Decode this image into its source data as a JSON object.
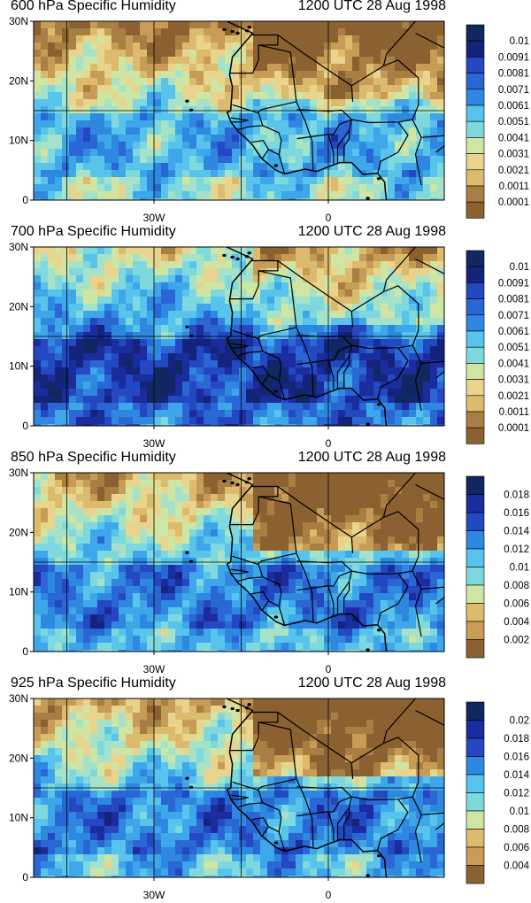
{
  "colors": {
    "ramp": [
      "#8c6131",
      "#a87e42",
      "#c79c56",
      "#ddbb6c",
      "#e8d48c",
      "#cfe5a4",
      "#a6e2c8",
      "#7ed9de",
      "#58c4ec",
      "#3ea7ea",
      "#2f88e0",
      "#2a67d4",
      "#2447c2",
      "#1a2c9e",
      "#14247a",
      "#102760"
    ],
    "coast": "#000000",
    "grid": "#000000"
  },
  "axes": {
    "y_ticks": [
      "30N",
      "20N",
      "10N",
      "0"
    ],
    "x_ticks": [
      "30W",
      "0"
    ]
  },
  "panels": [
    {
      "title": "600 hPa Specific Humidity",
      "time": "1200 UTC 28 Aug 1998",
      "colorbar": [
        "0.01",
        "0.0091",
        "0.0081",
        "0.0071",
        "0.0061",
        "0.0051",
        "0.0041",
        "0.0031",
        "0.0021",
        "0.0011",
        "0.0001"
      ],
      "moisture_level": 0.45
    },
    {
      "title": "700 hPa Specific Humidity",
      "time": "1200 UTC 28 Aug 1998",
      "colorbar": [
        "0.01",
        "0.0091",
        "0.0081",
        "0.0071",
        "0.0061",
        "0.0051",
        "0.0041",
        "0.0031",
        "0.0021",
        "0.0011",
        "0.0001"
      ],
      "moisture_level": 0.7
    },
    {
      "title": "850 hPa Specific Humidity",
      "time": "1200 UTC 28 Aug 1998",
      "colorbar": [
        "0.018",
        "0.016",
        "0.014",
        "0.012",
        "0.01",
        "0.008",
        "0.006",
        "0.004",
        "0.002"
      ],
      "moisture_level": 0.55
    },
    {
      "title": "925 hPa Specific Humidity",
      "time": "1200 UTC 28 Aug 1998",
      "colorbar": [
        "0.02",
        "0.018",
        "0.016",
        "0.014",
        "0.012",
        "0.01",
        "0.008",
        "0.006",
        "0.004"
      ],
      "moisture_level": 0.55
    }
  ]
}
